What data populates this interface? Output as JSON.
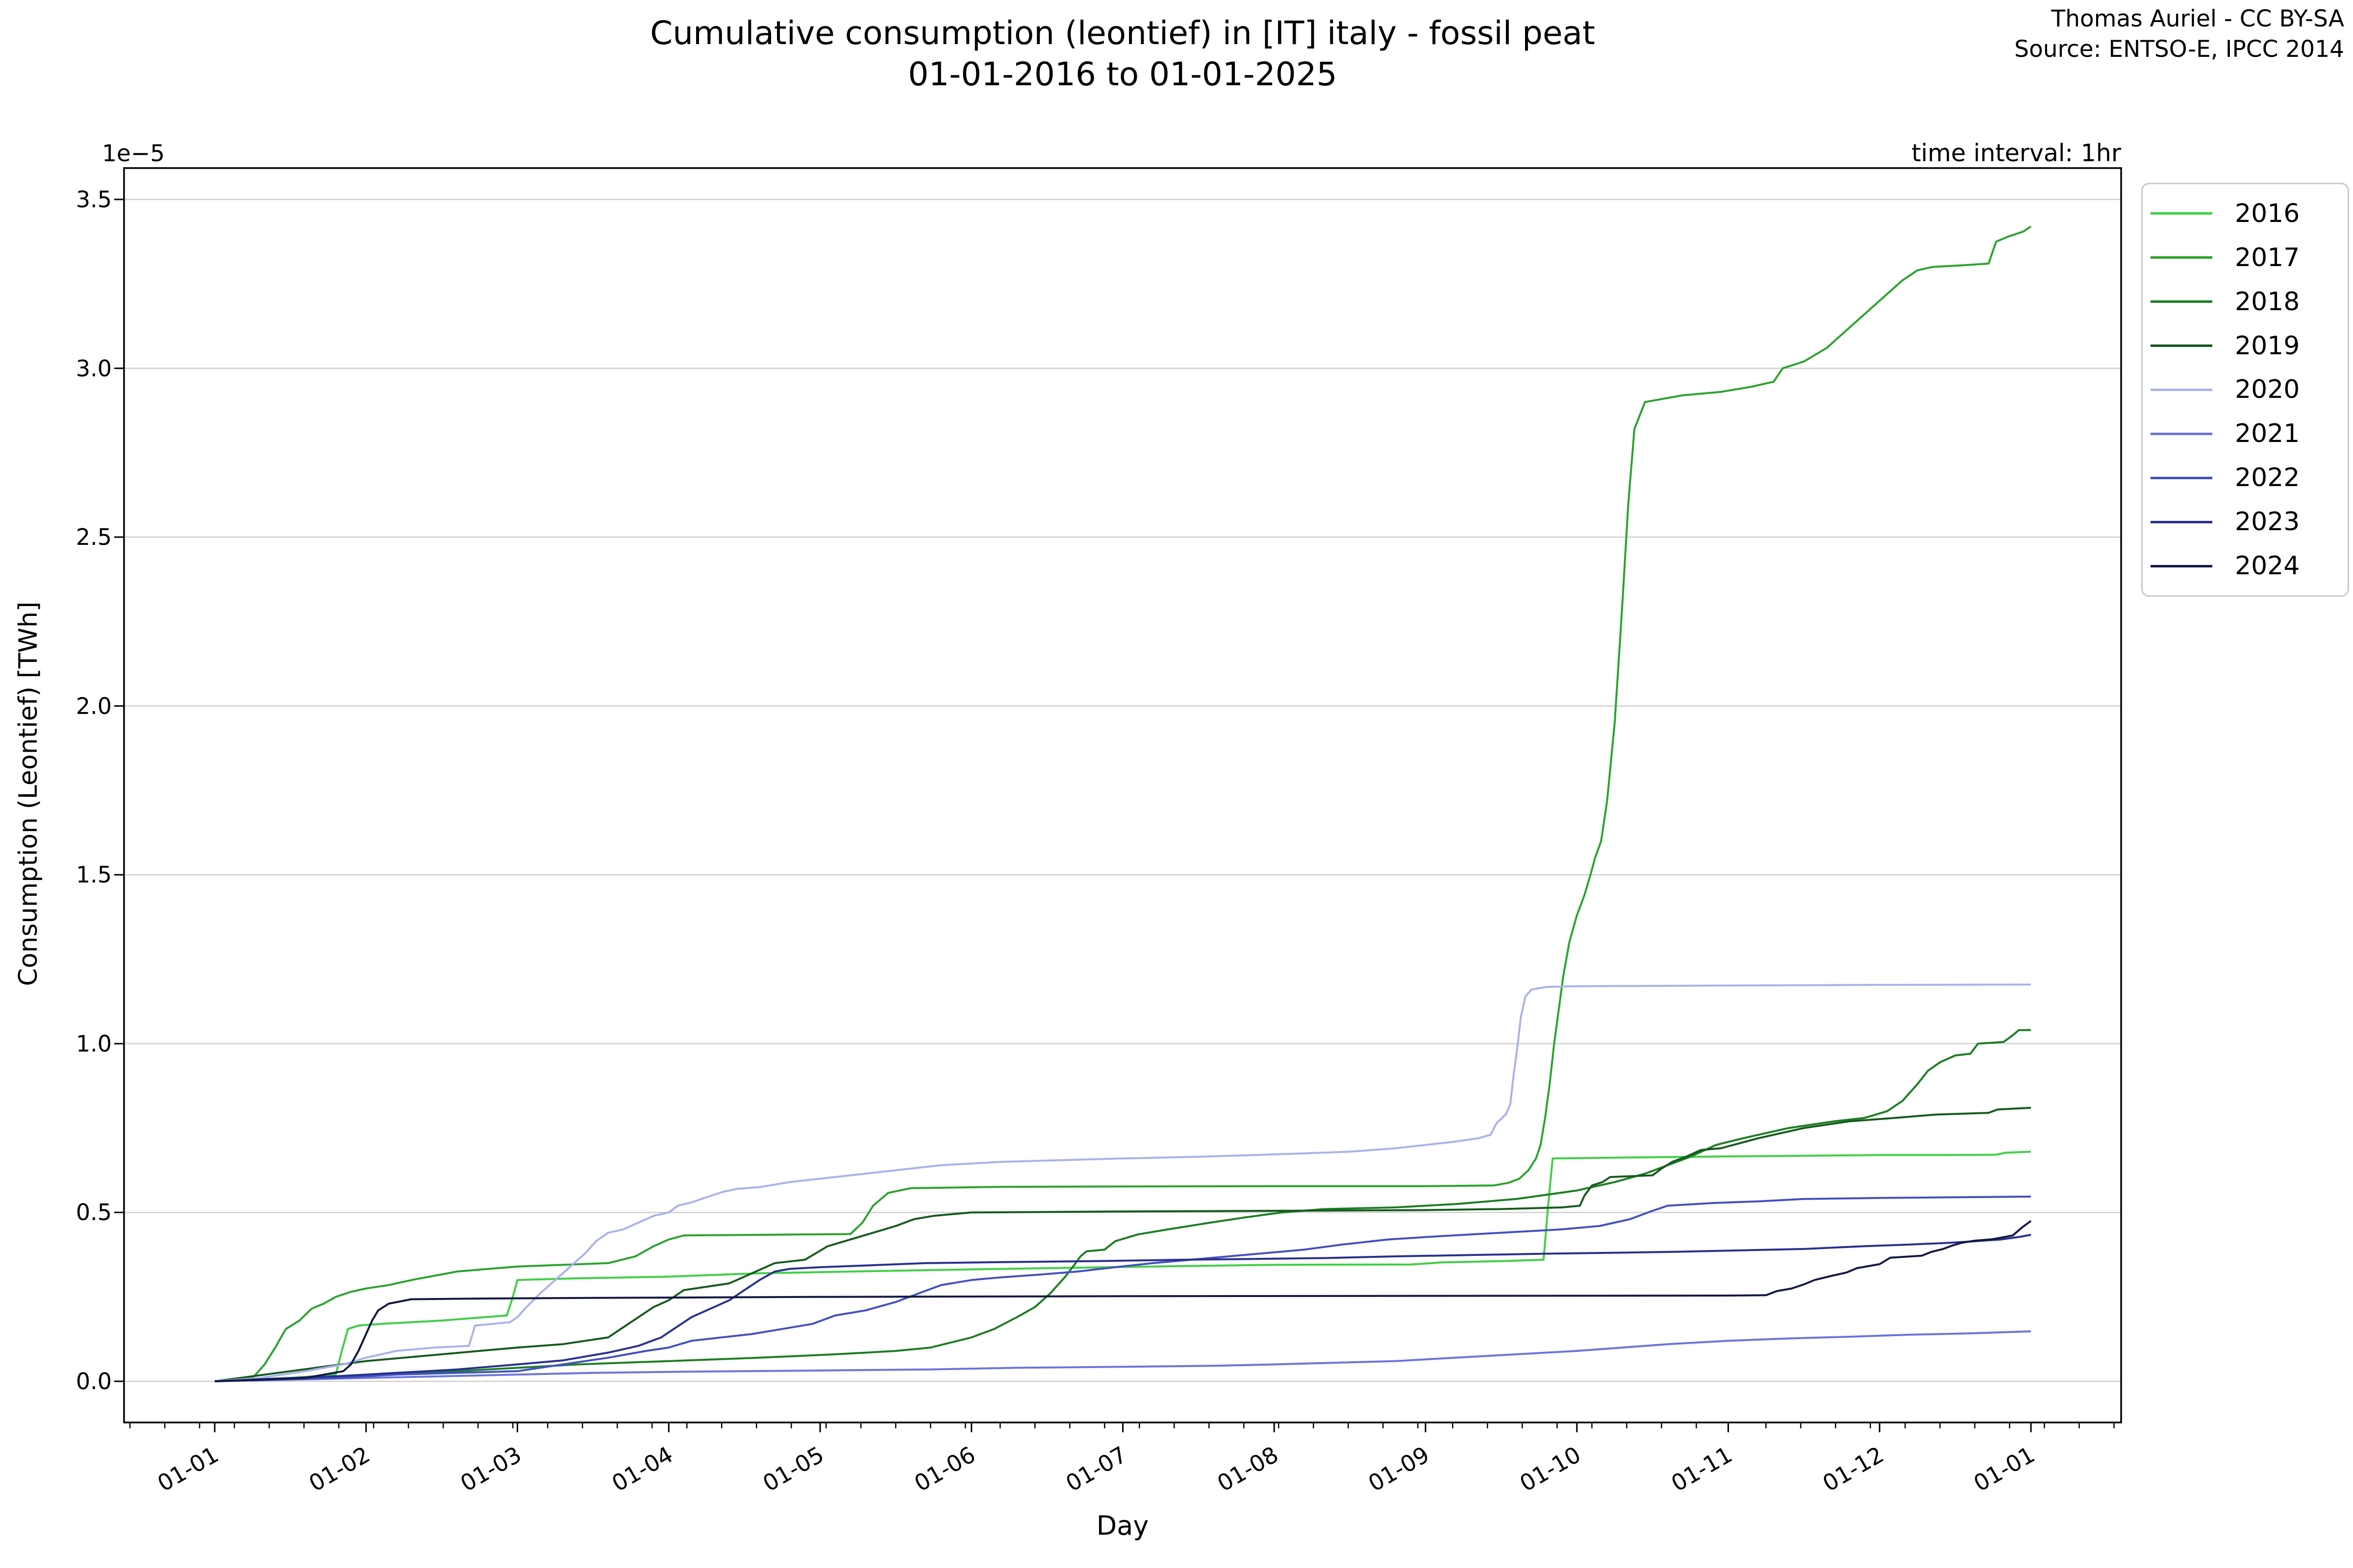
{
  "figure": {
    "title_line1": "Cumulative consumption (leontief) in [IT] italy - fossil peat",
    "title_line2": "01-01-2016 to 01-01-2025",
    "credit_line1": "Thomas Auriel - CC BY-SA",
    "credit_line2": "Source: ENTSO-E, IPCC 2014",
    "offset_label": "1e−5",
    "interval_label": "time interval: 1hr",
    "xlabel": "Day",
    "ylabel": "Consumption (Leontief) [TWh]"
  },
  "chart_data": {
    "type": "line",
    "title": "Cumulative consumption (leontief) in [IT] italy - fossil peat\n01-01-2016 to 01-01-2025",
    "xlabel": "Day",
    "ylabel": "Consumption (Leontief) [TWh]",
    "y_offset_factor": "1e−5",
    "annotation": "time interval: 1hr",
    "grid": "horizontal",
    "legend_position": "upper right outside",
    "x_tick_labels": [
      "01-01",
      "01-02",
      "01-03",
      "01-04",
      "01-05",
      "01-06",
      "01-07",
      "01-08",
      "01-09",
      "01-10",
      "01-11",
      "01-12",
      "01-01"
    ],
    "x_minor_tick_interval_days": 7,
    "y_ticks": [
      0.0,
      0.5,
      1.0,
      1.5,
      2.0,
      2.5,
      3.0,
      3.5
    ],
    "ylim": [
      -0.12,
      3.59
    ],
    "xlim_months": [
      -0.6,
      12.6
    ],
    "x_unit": "months from 01-01",
    "y_unit": "TWh × 1e−5",
    "series": [
      {
        "name": "2016",
        "color": "#3fcf44",
        "x": [
          0,
          0.5,
          0.8,
          0.84,
          0.88,
          0.95,
          1.1,
          1.5,
          1.93,
          1.97,
          2.0,
          2.4,
          3.0,
          3.6,
          4.2,
          4.8,
          5.5,
          6.2,
          7.0,
          7.9,
          8.05,
          8.1,
          8.5,
          8.78,
          8.81,
          8.84,
          9.2,
          9.6,
          10.0,
          10.5,
          11.0,
          11.4,
          11.77,
          11.83,
          12.0
        ],
        "y": [
          0,
          0.01,
          0.02,
          0.09,
          0.155,
          0.165,
          0.17,
          0.18,
          0.195,
          0.25,
          0.3,
          0.305,
          0.31,
          0.32,
          0.325,
          0.33,
          0.335,
          0.34,
          0.345,
          0.346,
          0.35,
          0.352,
          0.356,
          0.36,
          0.52,
          0.66,
          0.662,
          0.664,
          0.666,
          0.668,
          0.67,
          0.67,
          0.671,
          0.677,
          0.68
        ]
      },
      {
        "name": "2017",
        "color": "#2aa32d",
        "x": [
          0,
          0.25,
          0.33,
          0.4,
          0.47,
          0.56,
          0.64,
          0.72,
          0.8,
          0.9,
          1.0,
          1.15,
          1.3,
          1.6,
          2.0,
          2.6,
          2.78,
          2.9,
          3.0,
          3.1,
          4.2,
          4.28,
          4.35,
          4.45,
          4.6,
          5.2,
          6.0,
          7.0,
          8.0,
          8.45,
          8.55,
          8.62,
          8.68,
          8.73,
          8.76,
          8.79,
          8.82,
          8.85,
          8.88,
          8.91,
          8.95,
          9.0,
          9.05,
          9.09,
          9.12,
          9.16,
          9.2,
          9.25,
          9.3,
          9.34,
          9.38,
          9.45,
          9.7,
          9.95,
          10.15,
          10.3,
          10.36,
          10.5,
          10.65,
          10.8,
          10.95,
          11.05,
          11.15,
          11.25,
          11.35,
          11.55,
          11.72,
          11.77,
          11.85,
          11.95,
          12.0
        ],
        "y": [
          0,
          0.01,
          0.05,
          0.1,
          0.155,
          0.18,
          0.215,
          0.23,
          0.25,
          0.265,
          0.275,
          0.285,
          0.3,
          0.325,
          0.34,
          0.35,
          0.37,
          0.4,
          0.42,
          0.432,
          0.436,
          0.47,
          0.52,
          0.558,
          0.572,
          0.576,
          0.577,
          0.578,
          0.578,
          0.58,
          0.588,
          0.6,
          0.625,
          0.66,
          0.7,
          0.78,
          0.88,
          1.0,
          1.1,
          1.2,
          1.3,
          1.38,
          1.44,
          1.5,
          1.55,
          1.6,
          1.72,
          1.95,
          2.3,
          2.6,
          2.82,
          2.9,
          2.92,
          2.93,
          2.945,
          2.96,
          3.0,
          3.02,
          3.06,
          3.12,
          3.18,
          3.22,
          3.26,
          3.29,
          3.3,
          3.305,
          3.31,
          3.375,
          3.39,
          3.405,
          3.42
        ]
      },
      {
        "name": "2018",
        "color": "#1b7e22",
        "x": [
          0,
          0.6,
          1.2,
          1.8,
          2.4,
          3.0,
          3.6,
          4.1,
          4.5,
          4.73,
          5.0,
          5.15,
          5.3,
          5.42,
          5.52,
          5.62,
          5.68,
          5.72,
          5.76,
          5.88,
          5.95,
          6.1,
          6.3,
          6.55,
          6.8,
          7.05,
          7.33,
          7.8,
          8.2,
          8.6,
          9.0,
          9.25,
          9.45,
          9.6,
          9.75,
          9.92,
          10.1,
          10.4,
          10.7,
          10.9,
          11.05,
          11.15,
          11.25,
          11.32,
          11.4,
          11.5,
          11.6,
          11.65,
          11.82,
          11.88,
          11.92,
          12.0
        ],
        "y": [
          0,
          0.01,
          0.02,
          0.035,
          0.05,
          0.06,
          0.07,
          0.08,
          0.09,
          0.1,
          0.13,
          0.155,
          0.19,
          0.22,
          0.26,
          0.31,
          0.345,
          0.37,
          0.385,
          0.39,
          0.415,
          0.435,
          0.45,
          0.468,
          0.485,
          0.5,
          0.51,
          0.515,
          0.525,
          0.54,
          0.565,
          0.59,
          0.615,
          0.64,
          0.665,
          0.7,
          0.72,
          0.75,
          0.77,
          0.78,
          0.8,
          0.83,
          0.88,
          0.92,
          0.945,
          0.965,
          0.97,
          1.0,
          1.005,
          1.025,
          1.04,
          1.04
        ]
      },
      {
        "name": "2019",
        "color": "#155a1d",
        "x": [
          0,
          0.5,
          1.0,
          1.5,
          2.0,
          2.3,
          2.6,
          2.7,
          2.8,
          2.9,
          3.0,
          3.1,
          3.25,
          3.4,
          3.5,
          3.6,
          3.7,
          3.9,
          4.05,
          4.2,
          4.35,
          4.5,
          4.62,
          4.75,
          5.0,
          6.0,
          7.0,
          8.0,
          8.5,
          8.9,
          9.02,
          9.05,
          9.1,
          9.17,
          9.22,
          9.5,
          9.56,
          9.63,
          9.72,
          9.82,
          9.95,
          10.2,
          10.5,
          10.8,
          11.1,
          11.37,
          11.72,
          11.78,
          12.0
        ],
        "y": [
          0,
          0.03,
          0.06,
          0.08,
          0.1,
          0.11,
          0.13,
          0.16,
          0.19,
          0.22,
          0.24,
          0.27,
          0.28,
          0.29,
          0.31,
          0.33,
          0.35,
          0.36,
          0.4,
          0.42,
          0.44,
          0.46,
          0.48,
          0.49,
          0.5,
          0.503,
          0.505,
          0.507,
          0.51,
          0.515,
          0.52,
          0.55,
          0.58,
          0.59,
          0.605,
          0.61,
          0.63,
          0.65,
          0.665,
          0.685,
          0.69,
          0.72,
          0.75,
          0.77,
          0.78,
          0.79,
          0.795,
          0.805,
          0.81
        ]
      },
      {
        "name": "2020",
        "color": "#a9b2ec",
        "x": [
          0,
          0.3,
          0.6,
          0.85,
          1.0,
          1.2,
          1.45,
          1.68,
          1.72,
          1.95,
          2.0,
          2.06,
          2.15,
          2.25,
          2.35,
          2.45,
          2.52,
          2.6,
          2.7,
          2.8,
          2.9,
          3.0,
          3.06,
          3.15,
          3.25,
          3.35,
          3.45,
          3.6,
          3.8,
          4.0,
          4.3,
          4.6,
          4.8,
          5.2,
          5.6,
          6.0,
          6.5,
          7.0,
          7.5,
          7.8,
          8.0,
          8.2,
          8.35,
          8.43,
          8.47,
          8.53,
          8.56,
          8.58,
          8.61,
          8.63,
          8.66,
          8.7,
          8.8,
          9.0,
          10.0,
          11.0,
          12.0
        ],
        "y": [
          0,
          0.01,
          0.03,
          0.05,
          0.07,
          0.09,
          0.1,
          0.105,
          0.165,
          0.175,
          0.19,
          0.22,
          0.26,
          0.3,
          0.34,
          0.38,
          0.415,
          0.44,
          0.45,
          0.47,
          0.49,
          0.5,
          0.52,
          0.53,
          0.545,
          0.56,
          0.57,
          0.575,
          0.59,
          0.6,
          0.615,
          0.63,
          0.64,
          0.65,
          0.655,
          0.66,
          0.665,
          0.672,
          0.68,
          0.69,
          0.7,
          0.71,
          0.72,
          0.73,
          0.765,
          0.79,
          0.82,
          0.9,
          1.0,
          1.08,
          1.14,
          1.16,
          1.168,
          1.17,
          1.172,
          1.174,
          1.175
        ]
      },
      {
        "name": "2021",
        "color": "#6b75dc",
        "x": [
          0,
          0.5,
          1.0,
          1.5,
          2.0,
          2.5,
          3.0,
          3.5,
          4.0,
          4.7,
          5.3,
          6.0,
          6.6,
          7.0,
          7.4,
          7.8,
          8.2,
          8.6,
          9.0,
          9.3,
          9.6,
          10.0,
          10.4,
          10.8,
          11.2,
          11.6,
          12.0
        ],
        "y": [
          0,
          0.005,
          0.01,
          0.015,
          0.02,
          0.025,
          0.028,
          0.03,
          0.032,
          0.035,
          0.04,
          0.043,
          0.046,
          0.05,
          0.055,
          0.06,
          0.07,
          0.08,
          0.09,
          0.1,
          0.11,
          0.12,
          0.127,
          0.132,
          0.138,
          0.142,
          0.148
        ]
      },
      {
        "name": "2022",
        "color": "#4350c0",
        "x": [
          0,
          0.4,
          0.8,
          1.2,
          1.6,
          2.0,
          2.3,
          2.6,
          2.85,
          3.0,
          3.15,
          3.35,
          3.55,
          3.75,
          3.95,
          4.1,
          4.3,
          4.5,
          4.65,
          4.8,
          5.0,
          5.2,
          5.45,
          5.7,
          5.95,
          6.2,
          6.45,
          6.7,
          6.95,
          7.2,
          7.45,
          7.75,
          8.1,
          8.5,
          8.9,
          9.15,
          9.35,
          9.5,
          9.6,
          9.9,
          10.2,
          10.5,
          11.0,
          11.5,
          12.0
        ],
        "y": [
          0,
          0.005,
          0.01,
          0.02,
          0.025,
          0.03,
          0.05,
          0.07,
          0.09,
          0.1,
          0.12,
          0.13,
          0.14,
          0.155,
          0.17,
          0.195,
          0.21,
          0.235,
          0.26,
          0.285,
          0.3,
          0.308,
          0.316,
          0.325,
          0.338,
          0.35,
          0.36,
          0.37,
          0.38,
          0.39,
          0.405,
          0.42,
          0.43,
          0.44,
          0.45,
          0.46,
          0.48,
          0.505,
          0.52,
          0.528,
          0.533,
          0.54,
          0.543,
          0.545,
          0.547
        ]
      },
      {
        "name": "2023",
        "color": "#27308f",
        "x": [
          0,
          0.4,
          0.8,
          1.2,
          1.6,
          2.0,
          2.3,
          2.6,
          2.8,
          2.95,
          3.05,
          3.15,
          3.25,
          3.4,
          3.5,
          3.6,
          3.7,
          3.8,
          4.0,
          4.3,
          4.7,
          5.2,
          5.8,
          6.4,
          7.0,
          7.33,
          7.8,
          8.3,
          8.8,
          9.3,
          9.7,
          10.1,
          10.5,
          10.9,
          11.2,
          11.45,
          11.6,
          11.8,
          11.93,
          12.0
        ],
        "y": [
          0,
          0.008,
          0.015,
          0.025,
          0.035,
          0.05,
          0.062,
          0.085,
          0.105,
          0.13,
          0.16,
          0.19,
          0.21,
          0.24,
          0.27,
          0.3,
          0.325,
          0.333,
          0.338,
          0.343,
          0.35,
          0.353,
          0.356,
          0.36,
          0.363,
          0.365,
          0.37,
          0.374,
          0.378,
          0.381,
          0.384,
          0.388,
          0.392,
          0.4,
          0.405,
          0.41,
          0.414,
          0.42,
          0.428,
          0.434
        ]
      },
      {
        "name": "2024",
        "color": "#131743",
        "x": [
          0,
          0.3,
          0.6,
          0.85,
          0.9,
          0.95,
          1.0,
          1.04,
          1.08,
          1.15,
          1.3,
          1.7,
          2.5,
          4.0,
          6.0,
          8.0,
          10.0,
          10.25,
          10.32,
          10.42,
          10.5,
          10.57,
          10.68,
          10.78,
          10.85,
          11.0,
          11.07,
          11.28,
          11.34,
          11.42,
          11.48,
          11.54,
          11.62,
          11.75,
          11.88,
          11.94,
          12.0
        ],
        "y": [
          0,
          0.005,
          0.01,
          0.03,
          0.05,
          0.09,
          0.14,
          0.18,
          0.21,
          0.23,
          0.243,
          0.245,
          0.247,
          0.25,
          0.252,
          0.253,
          0.254,
          0.255,
          0.267,
          0.275,
          0.287,
          0.3,
          0.312,
          0.322,
          0.335,
          0.347,
          0.366,
          0.372,
          0.383,
          0.392,
          0.402,
          0.41,
          0.416,
          0.421,
          0.432,
          0.455,
          0.475
        ]
      }
    ]
  }
}
